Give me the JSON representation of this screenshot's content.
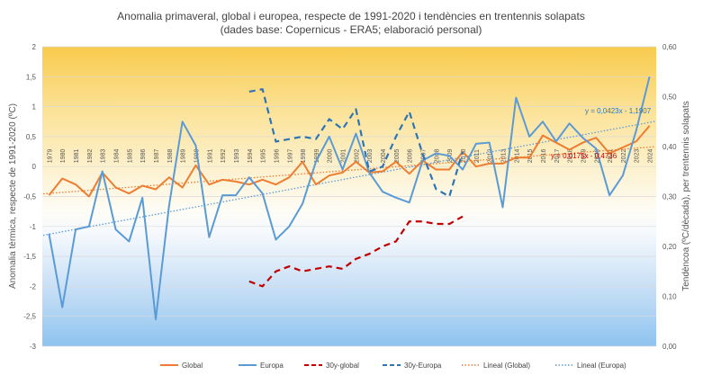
{
  "chart_data": {
    "type": "line",
    "title_line1": "Anomalia primaveral, global i europea, respecte de 1991-2020 i tendències en trentennis solapats",
    "title_line2": "(dades base: Copernicus - ERA5; elaboració personal)",
    "ylabel_left": "Anomalia tèrmica, respecte de 1991-2020 (ºC)",
    "ylabel_right": "Tendèncoa (ºC/dècada), per trentennis solapats",
    "ylim_left": [
      -3,
      2
    ],
    "ylim_right": [
      0,
      0.6
    ],
    "yticks_left": [
      "2",
      "1,5",
      "1",
      "0,5",
      "0",
      "-0,5",
      "-1",
      "-1,5",
      "-2",
      "-2,5",
      "-3"
    ],
    "yticks_right": [
      "0,60",
      "0,50",
      "0,40",
      "0,30",
      "0,20",
      "0,10",
      "0,00"
    ],
    "categories": [
      "1979",
      "1980",
      "1981",
      "1982",
      "1983",
      "1984",
      "1985",
      "1986",
      "1987",
      "1988",
      "1989",
      "1990",
      "1991",
      "1992",
      "1993",
      "1994",
      "1995",
      "1996",
      "1997",
      "1998",
      "1999",
      "2000",
      "2001",
      "2002",
      "2003",
      "2004",
      "2005",
      "2006",
      "2007",
      "2008",
      "2009",
      "2010",
      "2011",
      "2012",
      "2013",
      "2014",
      "2015",
      "2016",
      "2017",
      "2018",
      "2019",
      "2020",
      "2021",
      "2022",
      "2023",
      "2024"
    ],
    "series": [
      {
        "name": "Global",
        "axis": "left",
        "style": "solid",
        "color": "#ed7d31",
        "values": [
          -0.48,
          -0.2,
          -0.3,
          -0.5,
          -0.1,
          -0.35,
          -0.45,
          -0.32,
          -0.38,
          -0.18,
          -0.35,
          0.02,
          -0.3,
          -0.22,
          -0.25,
          -0.3,
          -0.22,
          -0.3,
          -0.18,
          0.08,
          -0.3,
          -0.15,
          -0.1,
          0.08,
          -0.1,
          -0.08,
          0.08,
          -0.12,
          0.1,
          -0.05,
          -0.05,
          0.25,
          0.0,
          0.05,
          0.05,
          0.15,
          0.15,
          0.52,
          0.4,
          0.28,
          0.4,
          0.48,
          0.22,
          0.32,
          0.42,
          0.68
        ]
      },
      {
        "name": "Europa",
        "axis": "left",
        "style": "solid",
        "color": "#5b9bd5",
        "values": [
          -1.12,
          -2.35,
          -1.05,
          -1.0,
          -0.08,
          -1.05,
          -1.25,
          -0.52,
          -2.55,
          -0.65,
          0.75,
          0.35,
          -1.18,
          -0.48,
          -0.48,
          -0.18,
          -0.45,
          -1.22,
          -1.0,
          -0.62,
          0.08,
          0.5,
          -0.05,
          0.55,
          -0.1,
          -0.42,
          -0.52,
          -0.6,
          0.1,
          0.22,
          0.18,
          -0.05,
          0.38,
          0.4,
          -0.68,
          1.15,
          0.5,
          0.75,
          0.42,
          0.72,
          0.48,
          0.3,
          -0.48,
          -0.15,
          0.6,
          1.5
        ]
      },
      {
        "name": "30y-global",
        "axis": "right",
        "style": "dashed",
        "color": "#c00000",
        "values": [
          null,
          null,
          null,
          null,
          null,
          null,
          null,
          null,
          null,
          null,
          null,
          null,
          null,
          null,
          null,
          0.13,
          0.12,
          0.15,
          0.16,
          0.15,
          0.155,
          0.16,
          0.155,
          0.175,
          0.185,
          0.2,
          0.21,
          0.25,
          0.25,
          0.245,
          0.245,
          0.26,
          null,
          null,
          null,
          null,
          null,
          null,
          null,
          null,
          null,
          null,
          null,
          null,
          null,
          null
        ]
      },
      {
        "name": "30y-Europa",
        "axis": "right",
        "style": "dashed",
        "color": "#2e75b6",
        "values": [
          null,
          null,
          null,
          null,
          null,
          null,
          null,
          null,
          null,
          null,
          null,
          null,
          null,
          null,
          null,
          0.51,
          0.515,
          0.41,
          0.415,
          0.42,
          0.415,
          0.455,
          0.435,
          0.475,
          0.35,
          0.36,
          0.42,
          0.47,
          0.385,
          0.315,
          0.3,
          0.39,
          null,
          null,
          null,
          null,
          null,
          null,
          null,
          null,
          null,
          null,
          null,
          null,
          null,
          null
        ]
      },
      {
        "name": "Lineal  (Global)",
        "axis": "left",
        "style": "dotted",
        "color": "#ed7d31",
        "slope": 0.0175,
        "intercept": -0.4736
      },
      {
        "name": "Lineal  (Europa)",
        "axis": "left",
        "style": "dotted",
        "color": "#5b9bd5",
        "slope": 0.0423,
        "intercept": -1.1907
      }
    ],
    "annotations": [
      {
        "text": "y = 0,0423x - 1,1907",
        "color": "#2e75b6"
      },
      {
        "text": "y = 0,0175x - 0,4736",
        "color": "#c00000"
      }
    ],
    "legend": [
      "Global",
      "Europa",
      "30y-global",
      "30y-Europa",
      "Lineal  (Global)",
      "Lineal  (Europa)"
    ],
    "legend_position": "bottom"
  }
}
